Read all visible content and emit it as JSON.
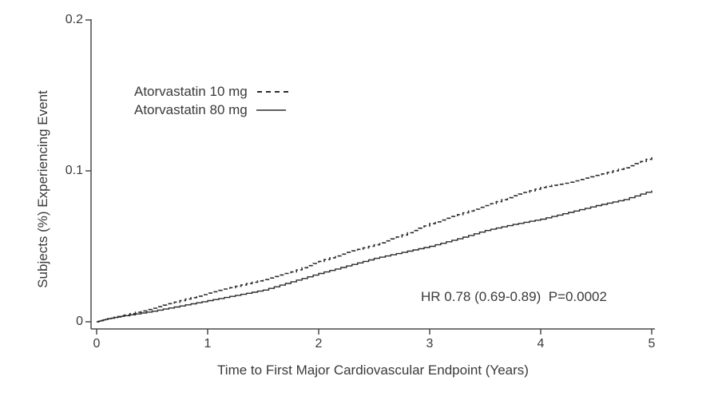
{
  "figure": {
    "background_color": "#ffffff",
    "text_color": "#3a3a3a",
    "axis_color": "#4a4a4a",
    "curve_color": "#2b2b2b"
  },
  "chart_data": {
    "type": "line",
    "subtype": "kaplan-meier-cumulative-incidence",
    "title": "",
    "xlabel": "Time to First Major Cardiovascular Endpoint (Years)",
    "ylabel": "Subjects (%) Experiencing Event",
    "xlim": [
      0,
      5
    ],
    "ylim": [
      0,
      0.2
    ],
    "x_ticks": [
      0,
      1,
      2,
      3,
      4,
      5
    ],
    "x_tick_labels": [
      "0",
      "1",
      "2",
      "3",
      "4",
      "5"
    ],
    "y_ticks": [
      0,
      0.1,
      0.2
    ],
    "y_tick_labels": [
      "0",
      "0.1",
      "0.2"
    ],
    "grid": false,
    "legend_position": "upper-left-inside",
    "annotation": "HR 0.78 (0.69-0.89)  P=0.0002",
    "series": [
      {
        "name": "Atorvastatin 10 mg",
        "style": "dashed",
        "color": "#2b2b2b",
        "x": [
          0,
          0.1,
          0.25,
          0.5,
          0.75,
          1,
          1.25,
          1.5,
          1.75,
          2,
          2.25,
          2.5,
          2.75,
          3,
          3.25,
          3.5,
          3.75,
          4,
          4.25,
          4.5,
          4.75,
          5
        ],
        "y": [
          0,
          0.002,
          0.0045,
          0.009,
          0.014,
          0.019,
          0.0235,
          0.028,
          0.033,
          0.04,
          0.046,
          0.051,
          0.0575,
          0.065,
          0.071,
          0.077,
          0.0835,
          0.089,
          0.0925,
          0.097,
          0.102,
          0.109
        ]
      },
      {
        "name": "Atorvastatin 80 mg",
        "style": "solid",
        "color": "#2b2b2b",
        "x": [
          0,
          0.1,
          0.25,
          0.5,
          0.75,
          1,
          1.25,
          1.5,
          1.75,
          2,
          2.25,
          2.5,
          2.75,
          3,
          3.25,
          3.5,
          3.75,
          4,
          4.25,
          4.5,
          4.75,
          5
        ],
        "y": [
          0,
          0.002,
          0.004,
          0.007,
          0.0105,
          0.014,
          0.0175,
          0.021,
          0.0265,
          0.032,
          0.037,
          0.042,
          0.046,
          0.05,
          0.055,
          0.0605,
          0.0645,
          0.068,
          0.0725,
          0.077,
          0.081,
          0.087
        ]
      }
    ]
  }
}
